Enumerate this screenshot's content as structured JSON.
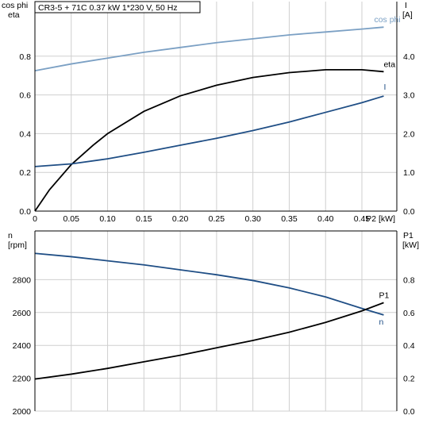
{
  "header": {
    "model": "CR3-5 + 71C",
    "power": "0.37 kW",
    "supply": "1*230 V, 50 Hz"
  },
  "colors": {
    "cos_phi": "#7ba0c4",
    "eta": "#000000",
    "current": "#1f4e85",
    "speed": "#1f4e85",
    "p1": "#000000",
    "grid": "#cfcfcf"
  },
  "chart_data": [
    {
      "type": "line",
      "xlabel": "P2 [kW]",
      "xlim": [
        0,
        0.5
      ],
      "x_ticks": [
        "0",
        "0.05",
        "0.10",
        "0.15",
        "0.20",
        "0.25",
        "0.30",
        "0.35",
        "0.40",
        "0.45"
      ],
      "y_left": {
        "labels": [
          "cos phi",
          "eta"
        ],
        "lim": [
          0,
          1.0
        ],
        "ticks": [
          "0.0",
          "0.2",
          "0.4",
          "0.6",
          "0.8"
        ]
      },
      "y_right": {
        "labels": [
          "I",
          "[A]"
        ],
        "lim": [
          0,
          5.0
        ],
        "ticks": [
          "0.0",
          "1.0",
          "2.0",
          "3.0",
          "4.0"
        ]
      },
      "series": [
        {
          "name": "cos phi",
          "axis": "left",
          "x": [
            0,
            0.05,
            0.1,
            0.15,
            0.2,
            0.25,
            0.3,
            0.35,
            0.4,
            0.45,
            0.48
          ],
          "y": [
            0.725,
            0.76,
            0.79,
            0.82,
            0.845,
            0.87,
            0.89,
            0.91,
            0.925,
            0.94,
            0.95
          ]
        },
        {
          "name": "eta",
          "axis": "left",
          "x": [
            0,
            0.02,
            0.05,
            0.08,
            0.1,
            0.15,
            0.2,
            0.25,
            0.3,
            0.35,
            0.4,
            0.45,
            0.48
          ],
          "y": [
            0,
            0.11,
            0.24,
            0.34,
            0.4,
            0.515,
            0.595,
            0.65,
            0.69,
            0.715,
            0.73,
            0.73,
            0.72
          ]
        },
        {
          "name": "I",
          "axis": "right",
          "x": [
            0,
            0.05,
            0.1,
            0.15,
            0.2,
            0.25,
            0.3,
            0.35,
            0.4,
            0.45,
            0.48
          ],
          "y": [
            1.15,
            1.22,
            1.35,
            1.52,
            1.7,
            1.88,
            2.08,
            2.3,
            2.55,
            2.8,
            2.97
          ]
        }
      ]
    },
    {
      "type": "line",
      "xlim": [
        0,
        0.5
      ],
      "y_left": {
        "labels": [
          "n",
          "[rpm]"
        ],
        "lim": [
          2000,
          3000
        ],
        "ticks": [
          "2000",
          "2200",
          "2400",
          "2600",
          "2800"
        ]
      },
      "y_right": {
        "labels": [
          "P1",
          "[kW]"
        ],
        "lim": [
          0,
          1.0
        ],
        "ticks": [
          "0.0",
          "0.2",
          "0.4",
          "0.6",
          "0.8"
        ]
      },
      "series": [
        {
          "name": "n",
          "axis": "left",
          "x": [
            0,
            0.05,
            0.1,
            0.15,
            0.2,
            0.25,
            0.3,
            0.35,
            0.4,
            0.45,
            0.48
          ],
          "y": [
            2960,
            2940,
            2915,
            2890,
            2860,
            2830,
            2795,
            2750,
            2695,
            2625,
            2585
          ]
        },
        {
          "name": "P1",
          "axis": "right",
          "x": [
            0,
            0.05,
            0.1,
            0.15,
            0.2,
            0.25,
            0.3,
            0.35,
            0.4,
            0.45,
            0.48
          ],
          "y": [
            0.195,
            0.225,
            0.26,
            0.3,
            0.34,
            0.385,
            0.43,
            0.48,
            0.54,
            0.61,
            0.66
          ]
        }
      ]
    }
  ]
}
